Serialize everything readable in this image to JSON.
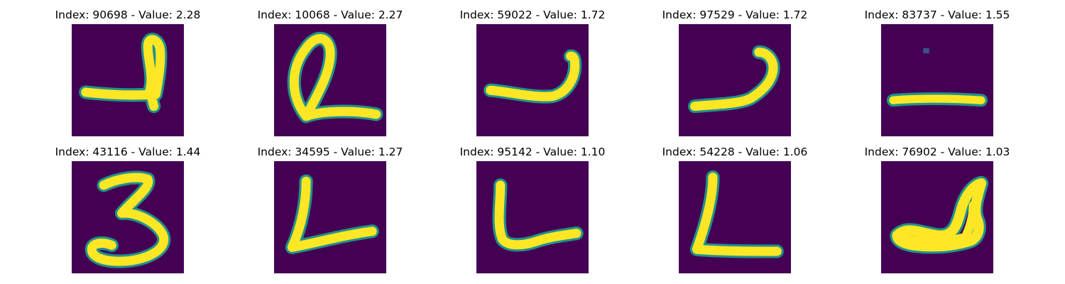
{
  "background": "#440154",
  "stroke_color": "#fde725",
  "edge_color": "#21918c",
  "panels": [
    {
      "title": "Index: 90698 - Value: 2.28",
      "index": 90698,
      "value": 2.28,
      "glyph": "handwritten-2-loop"
    },
    {
      "title": "Index: 10068 - Value: 2.27",
      "index": 10068,
      "value": 2.27,
      "glyph": "handwritten-2-loop"
    },
    {
      "title": "Index: 59022 - Value: 1.72",
      "index": 59022,
      "value": 1.72,
      "glyph": "curved-stroke"
    },
    {
      "title": "Index: 97529 - Value: 1.72",
      "index": 97529,
      "value": 1.72,
      "glyph": "curved-stroke"
    },
    {
      "title": "Index: 83737 - Value: 1.55",
      "index": 83737,
      "value": 1.55,
      "glyph": "horizontal-stroke"
    },
    {
      "title": "Index: 43116 - Value: 1.44",
      "index": 43116,
      "value": 1.44,
      "glyph": "handwritten-3"
    },
    {
      "title": "Index: 34595 - Value: 1.27",
      "index": 34595,
      "value": 1.27,
      "glyph": "handwritten-L"
    },
    {
      "title": "Index: 95142 - Value: 1.10",
      "index": 95142,
      "value": 1.1,
      "glyph": "handwritten-L"
    },
    {
      "title": "Index: 54228 - Value: 1.06",
      "index": 54228,
      "value": 1.06,
      "glyph": "handwritten-L"
    },
    {
      "title": "Index: 76902 - Value: 1.03",
      "index": 76902,
      "value": 1.03,
      "glyph": "handwritten-2-squiggle"
    }
  ]
}
